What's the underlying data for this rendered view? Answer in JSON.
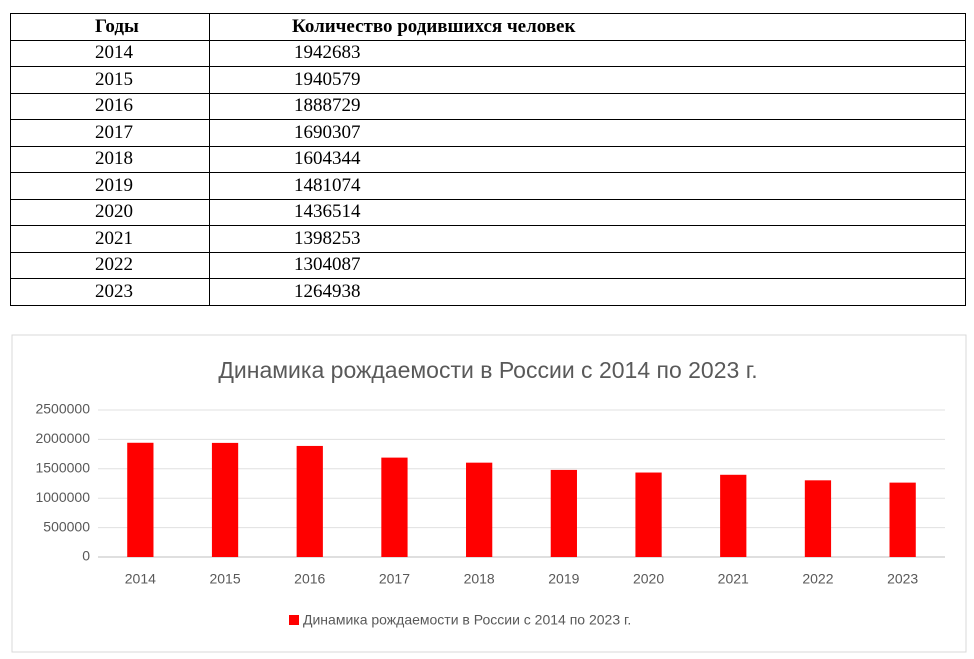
{
  "table": {
    "header": [
      "Годы",
      "Количество родившихся человек"
    ],
    "rows": [
      [
        "2014",
        1942683
      ],
      [
        "2015",
        1940579
      ],
      [
        "2016",
        1888729
      ],
      [
        "2017",
        1690307
      ],
      [
        "2018",
        1604344
      ],
      [
        "2019",
        1481074
      ],
      [
        "2020",
        1436514
      ],
      [
        "2021",
        1398253
      ],
      [
        "2022",
        1304087
      ],
      [
        "2023",
        1264938
      ]
    ]
  },
  "chart_data": {
    "type": "bar",
    "title": "Динамика рождаемости в России с 2014 по 2023 г.",
    "categories": [
      "2014",
      "2015",
      "2016",
      "2017",
      "2018",
      "2019",
      "2020",
      "2021",
      "2022",
      "2023"
    ],
    "series": [
      {
        "name": "Динамика рождаемости в России с 2014 по 2023 г.",
        "color": "#ff0000",
        "values": [
          1942683,
          1940579,
          1888729,
          1690307,
          1604344,
          1481074,
          1436514,
          1398253,
          1304087,
          1264938
        ]
      }
    ],
    "ylim": [
      0,
      2500000
    ],
    "yticks": [
      0,
      500000,
      1000000,
      1500000,
      2000000,
      2500000
    ],
    "grid": true,
    "legend": "bottom"
  }
}
